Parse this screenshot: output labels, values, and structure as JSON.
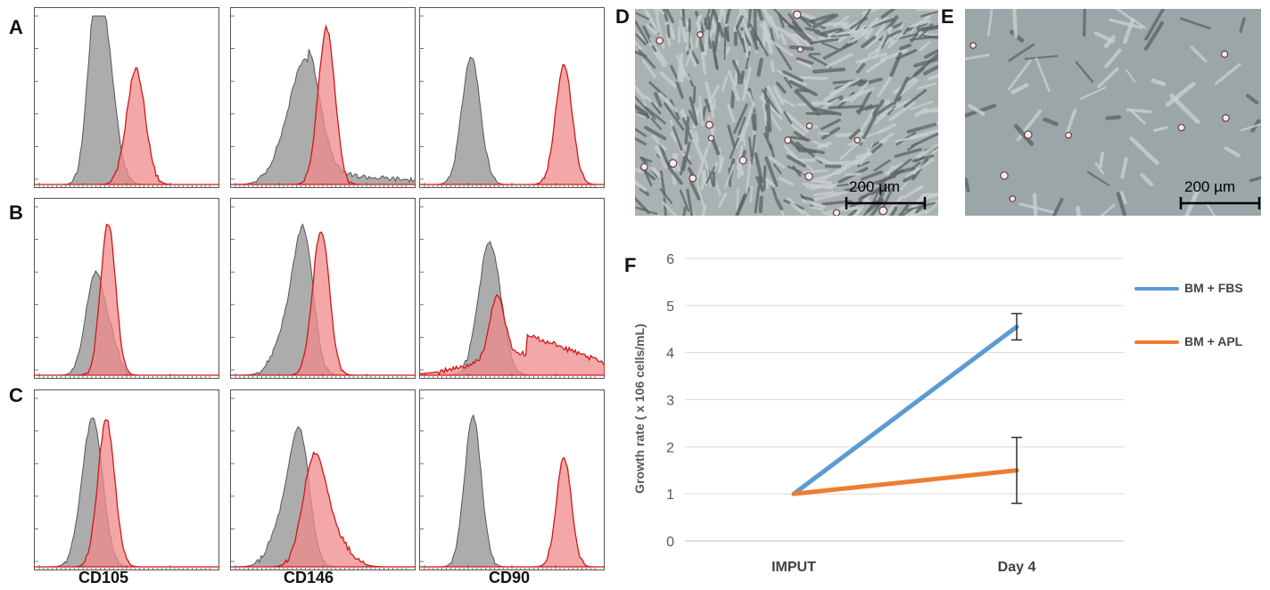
{
  "panel_labels": {
    "a": "A",
    "b": "B",
    "c": "C",
    "d": "D",
    "e": "E",
    "f": "F"
  },
  "flow_cytometry": {
    "markers": [
      "CD105",
      "CD146",
      "CD90"
    ],
    "colors": {
      "control": "#9e9e9e",
      "control_stroke": "#555555",
      "stained": "#f08a8a",
      "stained_stroke": "#d01818"
    }
  },
  "micrographs": {
    "d_scale": "200 µm",
    "e_scale": "200 µm",
    "d_background": "#a9b1b3",
    "e_background": "#9aa6a8"
  },
  "chart_data": {
    "type": "line",
    "categories": [
      "IMPUT",
      "Day 4"
    ],
    "series": [
      {
        "name": "BM + FBS",
        "values": [
          1,
          4.55
        ],
        "error": [
          0,
          0.28
        ],
        "color": "#5b9bd5"
      },
      {
        "name": "BM + APL",
        "values": [
          1,
          1.5
        ],
        "error": [
          0,
          0.7
        ],
        "color": "#ed7d31"
      }
    ],
    "ylabel": "Growth rate ( x 106 cells/mL)",
    "ylim": [
      0,
      6
    ],
    "yticks": [
      0,
      1,
      2,
      3,
      4,
      5,
      6
    ],
    "grid": true,
    "legend": "right"
  }
}
